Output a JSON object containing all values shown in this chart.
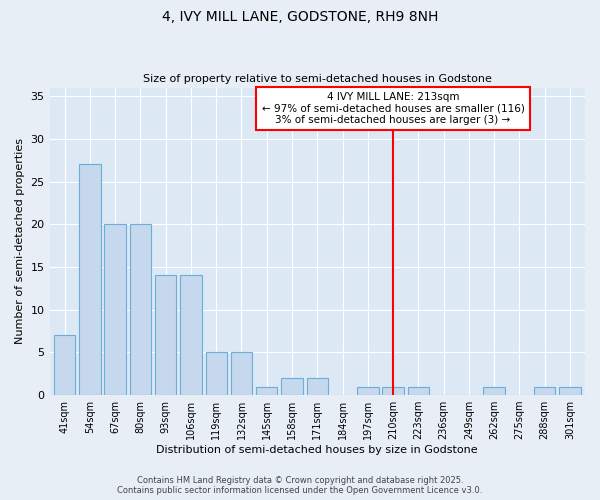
{
  "title": "4, IVY MILL LANE, GODSTONE, RH9 8NH",
  "subtitle": "Size of property relative to semi-detached houses in Godstone",
  "xlabel": "Distribution of semi-detached houses by size in Godstone",
  "ylabel": "Number of semi-detached properties",
  "bar_labels": [
    "41sqm",
    "54sqm",
    "67sqm",
    "80sqm",
    "93sqm",
    "106sqm",
    "119sqm",
    "132sqm",
    "145sqm",
    "158sqm",
    "171sqm",
    "184sqm",
    "197sqm",
    "210sqm",
    "223sqm",
    "236sqm",
    "249sqm",
    "262sqm",
    "275sqm",
    "288sqm",
    "301sqm"
  ],
  "bar_values": [
    7,
    27,
    20,
    20,
    14,
    14,
    5,
    5,
    1,
    2,
    2,
    0,
    1,
    1,
    1,
    0,
    0,
    1,
    0,
    1,
    1
  ],
  "bar_color": "#c5d8ee",
  "bar_edgecolor": "#6baed6",
  "red_line_index": 13,
  "annotation_line1": "4 IVY MILL LANE: 213sqm",
  "annotation_line2": "← 97% of semi-detached houses are smaller (116)",
  "annotation_line3": "3% of semi-detached houses are larger (3) →",
  "ylim": [
    0,
    36
  ],
  "yticks": [
    0,
    5,
    10,
    15,
    20,
    25,
    30,
    35
  ],
  "footer_line1": "Contains HM Land Registry data © Crown copyright and database right 2025.",
  "footer_line2": "Contains public sector information licensed under the Open Government Licence v3.0.",
  "bg_color": "#e8eef5",
  "plot_bg_color": "#dce8f4",
  "grid_color": "#ffffff",
  "title_fontsize": 10,
  "subtitle_fontsize": 8
}
